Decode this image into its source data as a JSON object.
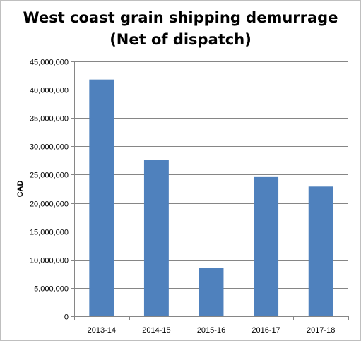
{
  "chart_data": {
    "type": "bar",
    "title": [
      "West coast grain shipping demurrage",
      "(Net of dispatch)"
    ],
    "xlabel": "",
    "ylabel": "CAD",
    "categories": [
      "2013-14",
      "2014-15",
      "2015-16",
      "2016-17",
      "2017-18"
    ],
    "values": [
      41800000,
      27600000,
      8600000,
      24700000,
      22900000
    ],
    "ylim": [
      0,
      45000000
    ],
    "yticks": [
      0,
      5000000,
      10000000,
      15000000,
      20000000,
      25000000,
      30000000,
      35000000,
      40000000,
      45000000
    ],
    "ytick_labels": [
      "0",
      "5,000,000",
      "10,000,000",
      "15,000,000",
      "20,000,000",
      "25,000,000",
      "30,000,000",
      "35,000,000",
      "40,000,000",
      "45,000,000"
    ],
    "grid": true,
    "legend": "none",
    "bar_color": "#4f81bd",
    "grid_color": "#868686"
  }
}
